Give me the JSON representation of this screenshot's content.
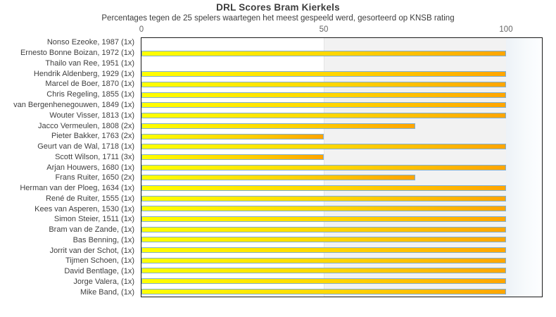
{
  "chart": {
    "title": "DRL Scores Bram Kierkels",
    "subtitle": "Percentages tegen de 25 spelers waartegen het meest gespeeld werd, gesorteerd op KNSB rating"
  },
  "chart_data": {
    "type": "bar",
    "orientation": "horizontal",
    "title": "DRL Scores Bram Kierkels",
    "subtitle": "Percentages tegen de 25 spelers waartegen het meest gespeeld werd, gesorteerd op KNSB rating",
    "xlabel": "",
    "ylabel": "",
    "xlim": [
      0,
      100
    ],
    "x_ticks": [
      0,
      50,
      100
    ],
    "grid": false,
    "legend": false,
    "shaded_band_x": [
      50,
      100
    ],
    "categories": [
      "Nonso Ezeoke, 1987 (1x)",
      "Ernesto Bonne Boizan, 1972 (1x)",
      "Thailo van Ree, 1951 (1x)",
      "Hendrik Aldenberg, 1929 (1x)",
      "Marcel de Boer, 1870 (1x)",
      "Chris Regeling, 1855 (1x)",
      "van Bergenhenegouwen, 1849 (1x)",
      "Wouter Visser, 1813 (1x)",
      "Jacco Vermeulen, 1808 (2x)",
      "Pieter Bakker, 1763 (2x)",
      "Geurt van de Wal, 1718 (1x)",
      "Scott Wilson, 1711 (3x)",
      "Arjan Houwers, 1680 (1x)",
      "Frans Ruiter, 1650 (2x)",
      "Herman van der Ploeg, 1634 (1x)",
      "René de Ruiter, 1555 (1x)",
      "Kees van Asperen, 1530 (1x)",
      "Simon Steier, 1511 (1x)",
      "Bram van de Zande,  (1x)",
      "Bas Benning,  (1x)",
      "Jorrit van der Schot,  (1x)",
      "Tijmen Schoen,  (1x)",
      "David Bentlage,  (1x)",
      "Jorge Valera,  (1x)",
      "Mike Band,  (1x)"
    ],
    "values": [
      0,
      100,
      0,
      100,
      100,
      100,
      100,
      100,
      75,
      50,
      100,
      50,
      100,
      75,
      100,
      100,
      100,
      100,
      100,
      100,
      100,
      100,
      100,
      100,
      100
    ],
    "colors": {
      "bar_gradient_start": "#ffff00",
      "bar_gradient_end": "#ffa500",
      "bar_border": "#7fafd4",
      "shaded_band": "#f2f2f2",
      "plot_border": "#1a1a1a",
      "text": "#3d3d3d",
      "tick_text": "#666666"
    }
  }
}
